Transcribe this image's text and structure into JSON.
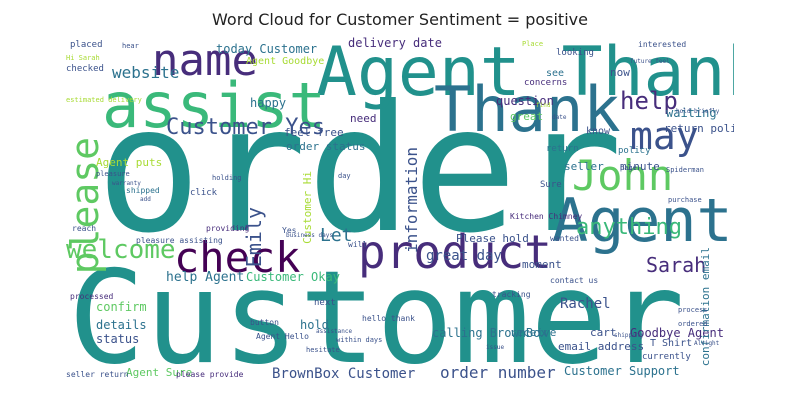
{
  "title": "Word Cloud for Customer Sentiment = positive",
  "colors": {
    "yellowgreen": "#a8db34",
    "green": "#5ec962",
    "seagreen": "#3ab97a",
    "teal": "#21918c",
    "steel": "#2c728e",
    "blue": "#3b528b",
    "indigo": "#472d7b",
    "purple": "#440154"
  },
  "words": [
    {
      "id": "order",
      "text": "order"
    },
    {
      "id": "customer-big",
      "text": "Customer"
    },
    {
      "id": "agent-thank",
      "text": "Agent Thank"
    },
    {
      "id": "thank",
      "text": "Thank"
    },
    {
      "id": "assist",
      "text": "assist"
    },
    {
      "id": "name",
      "text": "name"
    },
    {
      "id": "agent",
      "text": "Agent"
    },
    {
      "id": "product",
      "text": "product"
    },
    {
      "id": "check",
      "text": "check"
    },
    {
      "id": "john",
      "text": "John"
    },
    {
      "id": "may",
      "text": "may"
    },
    {
      "id": "please",
      "text": "please"
    },
    {
      "id": "customer-yes",
      "text": "Customer Yes"
    },
    {
      "id": "welcome",
      "text": "welcome"
    },
    {
      "id": "help",
      "text": "help"
    },
    {
      "id": "anything",
      "text": "anything"
    },
    {
      "id": "sarah",
      "text": "Sarah"
    },
    {
      "id": "emily",
      "text": "Emily"
    },
    {
      "id": "let",
      "text": "Let"
    },
    {
      "id": "information",
      "text": "information"
    },
    {
      "id": "website",
      "text": "website"
    },
    {
      "id": "order-number",
      "text": "order number"
    },
    {
      "id": "brownbox-customer",
      "text": "BrownBox Customer"
    },
    {
      "id": "customer-support",
      "text": "Customer Support"
    },
    {
      "id": "great-day",
      "text": "great day"
    },
    {
      "id": "rachel",
      "text": "Rachel"
    },
    {
      "id": "help-agent",
      "text": "help Agent"
    },
    {
      "id": "customer-okay",
      "text": "Customer Okay"
    },
    {
      "id": "goodbye-agent",
      "text": "Goodbye Agent"
    },
    {
      "id": "calling-brownbox",
      "text": "calling BrownBox"
    },
    {
      "id": "confirmation-email",
      "text": "confirmation email"
    },
    {
      "id": "today-customer",
      "text": "today Customer"
    },
    {
      "id": "delivery-date",
      "text": "delivery date"
    },
    {
      "id": "agent-goodbye",
      "text": "Agent Goodbye"
    },
    {
      "id": "happy",
      "text": "happy"
    },
    {
      "id": "question",
      "text": "question"
    },
    {
      "id": "great",
      "text": "great"
    },
    {
      "id": "waiting",
      "text": "waiting"
    },
    {
      "id": "return-policy",
      "text": "return policy"
    },
    {
      "id": "feel-free",
      "text": "feel free"
    },
    {
      "id": "order-status",
      "text": "order status"
    },
    {
      "id": "agent-puts",
      "text": "Agent puts"
    },
    {
      "id": "customer-hi",
      "text": "Customer Hi"
    },
    {
      "id": "details",
      "text": "details"
    },
    {
      "id": "status",
      "text": "status"
    },
    {
      "id": "confirm",
      "text": "confirm"
    },
    {
      "id": "hold",
      "text": "hold"
    },
    {
      "id": "agent-sure",
      "text": "Agent Sure"
    },
    {
      "id": "cart",
      "text": "cart"
    },
    {
      "id": "email-address",
      "text": "email address"
    },
    {
      "id": "receive",
      "text": "receive"
    },
    {
      "id": "moment",
      "text": "moment"
    },
    {
      "id": "please-hold",
      "text": "Please hold"
    },
    {
      "id": "seller",
      "text": "seller"
    },
    {
      "id": "minute",
      "text": "minute"
    },
    {
      "id": "know",
      "text": "know"
    },
    {
      "id": "now",
      "text": "now"
    },
    {
      "id": "need",
      "text": "need"
    },
    {
      "id": "see",
      "text": "see"
    },
    {
      "id": "placed",
      "text": "placed"
    },
    {
      "id": "checked",
      "text": "checked"
    },
    {
      "id": "concerns",
      "text": "concerns"
    },
    {
      "id": "looking",
      "text": "looking"
    },
    {
      "id": "interested",
      "text": "interested"
    },
    {
      "id": "policy",
      "text": "policy"
    },
    {
      "id": "return",
      "text": "return"
    },
    {
      "id": "sure",
      "text": "Sure"
    },
    {
      "id": "kitchen-chimney",
      "text": "Kitchen Chimney"
    },
    {
      "id": "wanted",
      "text": "wanted"
    },
    {
      "id": "t-shirt",
      "text": "T Shirt"
    },
    {
      "id": "currently",
      "text": "currently"
    },
    {
      "id": "contact-us",
      "text": "contact us"
    },
    {
      "id": "tracking",
      "text": "tracking"
    },
    {
      "id": "processed",
      "text": "processed"
    },
    {
      "id": "shipped",
      "text": "shipped"
    },
    {
      "id": "click",
      "text": "click"
    },
    {
      "id": "providing",
      "text": "providing"
    },
    {
      "id": "reach",
      "text": "reach"
    },
    {
      "id": "pleasure-assisting",
      "text": "pleasure assisting"
    },
    {
      "id": "agent-hello",
      "text": "Agent Hello"
    },
    {
      "id": "button",
      "text": "button"
    },
    {
      "id": "within-days",
      "text": "within days"
    },
    {
      "id": "hesitate",
      "text": "hesitate"
    },
    {
      "id": "seller-return",
      "text": "seller return"
    },
    {
      "id": "please-provide",
      "text": "please provide"
    },
    {
      "id": "next",
      "text": "next"
    },
    {
      "id": "hello-thank",
      "text": "hello thank"
    },
    {
      "id": "will",
      "text": "will"
    },
    {
      "id": "yes",
      "text": "Yes"
    },
    {
      "id": "holding",
      "text": "holding"
    },
    {
      "id": "pleasure",
      "text": "pleasure"
    },
    {
      "id": "spiderman",
      "text": "Spiderman"
    },
    {
      "id": "hold-briefly",
      "text": "hold briefly"
    },
    {
      "id": "purchase",
      "text": "purchase"
    },
    {
      "id": "page",
      "text": "page"
    },
    {
      "id": "ordered",
      "text": "ordered"
    },
    {
      "id": "process",
      "text": "process"
    },
    {
      "id": "shipping",
      "text": "shipping"
    },
    {
      "id": "issue",
      "text": "issue"
    },
    {
      "id": "assistance",
      "text": "assistance"
    },
    {
      "id": "estimated-delivery",
      "text": "estimated delivery"
    },
    {
      "id": "hi-sarah",
      "text": "Hi Sarah"
    },
    {
      "id": "hear",
      "text": "hear"
    },
    {
      "id": "place",
      "text": "Place"
    },
    {
      "id": "find",
      "text": "find"
    },
    {
      "id": "date",
      "text": "date"
    },
    {
      "id": "day",
      "text": "day"
    },
    {
      "id": "add",
      "text": "add"
    },
    {
      "id": "business-days",
      "text": "business days"
    },
    {
      "id": "warranty",
      "text": "warranty"
    },
    {
      "id": "future-feel",
      "text": "future feel"
    },
    {
      "id": "alright",
      "text": "Alright"
    }
  ]
}
